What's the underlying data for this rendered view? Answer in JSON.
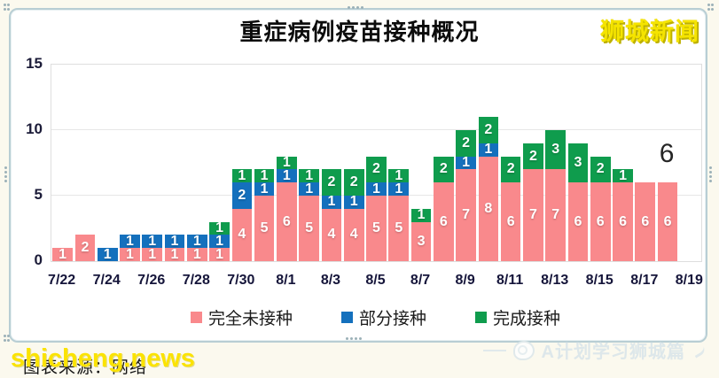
{
  "chart": {
    "title": "重症病例疫苗接种概况",
    "watermark_topright": "狮城新闻",
    "watermark_color": "#f5e400",
    "last_value_annotation": "6"
  },
  "axes": {
    "y_ticks": [
      "15",
      "10",
      "5",
      "0"
    ],
    "x_tick_labels": [
      "7/22",
      "7/24",
      "7/26",
      "7/28",
      "7/30",
      "8/1",
      "8/3",
      "8/5",
      "8/7",
      "8/9",
      "8/11",
      "8/13",
      "8/15",
      "8/17",
      "8/19"
    ]
  },
  "legend": {
    "items": [
      {
        "label": "完全未接种",
        "color": "#f9898c"
      },
      {
        "label": "部分接种",
        "color": "#1470bd"
      },
      {
        "label": "完成接种",
        "color": "#0f9c4d"
      }
    ]
  },
  "footer": {
    "source_text": "图表来源：网络",
    "site_watermark": "shicheng.news",
    "channel_watermark": "A计划学习狮城篇"
  },
  "chart_data": {
    "type": "bar",
    "stacked": true,
    "title": "重症病例疫苗接种概况",
    "categories": [
      "7/22",
      "7/23",
      "7/24",
      "7/25",
      "7/26",
      "7/27",
      "7/28",
      "7/29",
      "7/30",
      "7/31",
      "8/1",
      "8/2",
      "8/3",
      "8/4",
      "8/5",
      "8/6",
      "8/7",
      "8/8",
      "8/9",
      "8/10",
      "8/11",
      "8/12",
      "8/13",
      "8/14",
      "8/15",
      "8/16",
      "8/17",
      "8/18"
    ],
    "series": [
      {
        "name": "完全未接种",
        "color": "#f9898c",
        "values": [
          1,
          2,
          0,
          1,
          1,
          1,
          1,
          1,
          4,
          5,
          6,
          5,
          4,
          4,
          5,
          5,
          3,
          6,
          7,
          8,
          6,
          7,
          7,
          6,
          6,
          6,
          6,
          6
        ]
      },
      {
        "name": "部分接种",
        "color": "#1470bd",
        "values": [
          0,
          0,
          1,
          1,
          1,
          1,
          1,
          1,
          2,
          1,
          1,
          1,
          1,
          1,
          1,
          1,
          0,
          0,
          1,
          1,
          0,
          0,
          0,
          0,
          0,
          0,
          0,
          0
        ]
      },
      {
        "name": "完成接种",
        "color": "#0f9c4d",
        "values": [
          0,
          0,
          0,
          0,
          0,
          0,
          0,
          1,
          1,
          1,
          1,
          1,
          2,
          2,
          2,
          1,
          1,
          2,
          2,
          2,
          2,
          2,
          3,
          3,
          2,
          1,
          0,
          0
        ]
      }
    ],
    "ylim": [
      0,
      15
    ],
    "y_ticks": [
      0,
      5,
      10,
      15
    ],
    "x_tick_labels_shown": [
      "7/22",
      "7/24",
      "7/26",
      "7/28",
      "7/30",
      "8/1",
      "8/3",
      "8/5",
      "8/7",
      "8/9",
      "8/11",
      "8/13",
      "8/15",
      "8/17",
      "8/19"
    ],
    "grid": true,
    "legend_position": "bottom",
    "annotation": {
      "text": "6",
      "category": "8/18"
    }
  }
}
